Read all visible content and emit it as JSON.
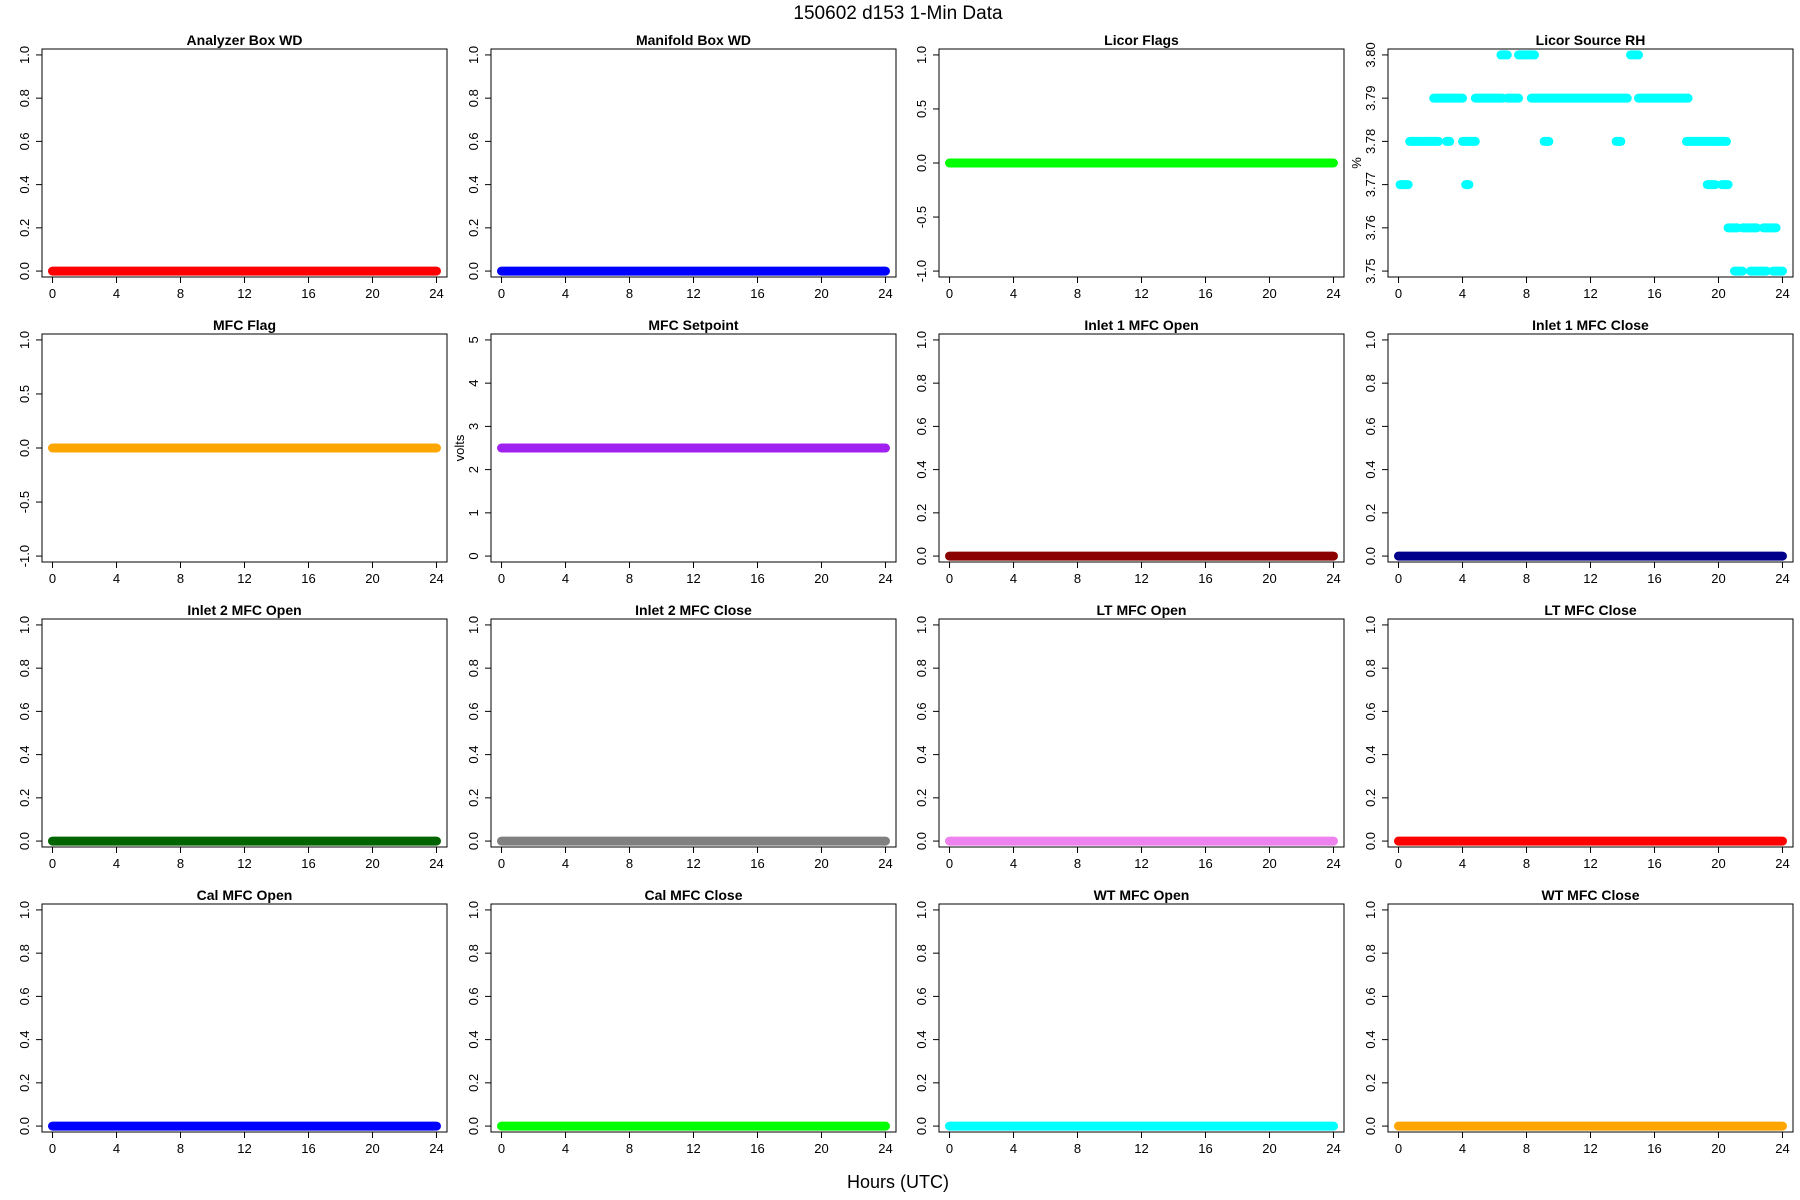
{
  "figure": {
    "title": "150602   d153   1-Min Data",
    "xlabel": "Hours (UTC)"
  },
  "chart_data": [
    {
      "type": "scatter",
      "title": "Analyzer Box WD",
      "ylabel": "",
      "color": "#ff0000",
      "xlim": [
        0,
        24
      ],
      "ylim": [
        0,
        1
      ],
      "x_ticks": [
        "0",
        "4",
        "8",
        "12",
        "16",
        "20",
        "24"
      ],
      "y_ticks": [
        "0.0",
        "0.2",
        "0.4",
        "0.6",
        "0.8",
        "1.0"
      ],
      "segments": [
        {
          "x": [
            0,
            24
          ],
          "y": 0
        }
      ]
    },
    {
      "type": "scatter",
      "title": "Manifold Box WD",
      "ylabel": "",
      "color": "#0000ff",
      "xlim": [
        0,
        24
      ],
      "ylim": [
        0,
        1
      ],
      "x_ticks": [
        "0",
        "4",
        "8",
        "12",
        "16",
        "20",
        "24"
      ],
      "y_ticks": [
        "0.0",
        "0.2",
        "0.4",
        "0.6",
        "0.8",
        "1.0"
      ],
      "segments": [
        {
          "x": [
            0,
            24
          ],
          "y": 0
        }
      ]
    },
    {
      "type": "scatter",
      "title": "Licor Flags",
      "ylabel": "",
      "color": "#00ff00",
      "xlim": [
        0,
        24
      ],
      "ylim": [
        -1,
        1
      ],
      "x_ticks": [
        "0",
        "4",
        "8",
        "12",
        "16",
        "20",
        "24"
      ],
      "y_ticks": [
        "-1.0",
        "-0.5",
        "0.0",
        "0.5",
        "1.0"
      ],
      "segments": [
        {
          "x": [
            0,
            24
          ],
          "y": 0
        }
      ]
    },
    {
      "type": "scatter",
      "title": "Licor Source RH",
      "ylabel": "%",
      "color": "#00ffff",
      "xlim": [
        0,
        24
      ],
      "ylim": [
        3.75,
        3.8
      ],
      "x_ticks": [
        "0",
        "4",
        "8",
        "12",
        "16",
        "20",
        "24"
      ],
      "y_ticks": [
        "3.75",
        "3.76",
        "3.77",
        "3.78",
        "3.79",
        "3.80"
      ],
      "segments": [
        {
          "x": [
            0.1,
            0.6
          ],
          "y": 3.77
        },
        {
          "x": [
            0.7,
            1.5
          ],
          "y": 3.78
        },
        {
          "x": [
            1.6,
            2.5
          ],
          "y": 3.78
        },
        {
          "x": [
            2.2,
            4.0
          ],
          "y": 3.79
        },
        {
          "x": [
            3.0,
            3.2
          ],
          "y": 3.78
        },
        {
          "x": [
            4.0,
            4.8
          ],
          "y": 3.78
        },
        {
          "x": [
            4.2,
            4.4
          ],
          "y": 3.77
        },
        {
          "x": [
            4.8,
            6.5
          ],
          "y": 3.79
        },
        {
          "x": [
            6.4,
            6.8
          ],
          "y": 3.8
        },
        {
          "x": [
            6.8,
            7.5
          ],
          "y": 3.79
        },
        {
          "x": [
            7.5,
            8.5
          ],
          "y": 3.8
        },
        {
          "x": [
            8.3,
            14.3
          ],
          "y": 3.79
        },
        {
          "x": [
            9.1,
            9.4
          ],
          "y": 3.78
        },
        {
          "x": [
            13.6,
            13.9
          ],
          "y": 3.78
        },
        {
          "x": [
            14.5,
            15.0
          ],
          "y": 3.8
        },
        {
          "x": [
            15.0,
            18.1
          ],
          "y": 3.79
        },
        {
          "x": [
            18.0,
            19.8
          ],
          "y": 3.78
        },
        {
          "x": [
            19.8,
            20.5
          ],
          "y": 3.78
        },
        {
          "x": [
            19.3,
            19.8
          ],
          "y": 3.77
        },
        {
          "x": [
            20.2,
            20.6
          ],
          "y": 3.77
        },
        {
          "x": [
            20.6,
            21.2
          ],
          "y": 3.76
        },
        {
          "x": [
            21.5,
            22.4
          ],
          "y": 3.76
        },
        {
          "x": [
            21.0,
            21.5
          ],
          "y": 3.75
        },
        {
          "x": [
            22.0,
            23.0
          ],
          "y": 3.75
        },
        {
          "x": [
            22.8,
            23.6
          ],
          "y": 3.76
        },
        {
          "x": [
            23.4,
            24.0
          ],
          "y": 3.75
        }
      ]
    },
    {
      "type": "scatter",
      "title": "MFC Flag",
      "ylabel": "",
      "color": "#ffa500",
      "xlim": [
        0,
        24
      ],
      "ylim": [
        -1,
        1
      ],
      "x_ticks": [
        "0",
        "4",
        "8",
        "12",
        "16",
        "20",
        "24"
      ],
      "y_ticks": [
        "-1.0",
        "-0.5",
        "0.0",
        "0.5",
        "1.0"
      ],
      "segments": [
        {
          "x": [
            0,
            24
          ],
          "y": 0
        }
      ]
    },
    {
      "type": "scatter",
      "title": "MFC Setpoint",
      "ylabel": "volts",
      "color": "#a020f0",
      "xlim": [
        0,
        24
      ],
      "ylim": [
        0,
        5
      ],
      "x_ticks": [
        "0",
        "4",
        "8",
        "12",
        "16",
        "20",
        "24"
      ],
      "y_ticks": [
        "0",
        "1",
        "2",
        "3",
        "4",
        "5"
      ],
      "segments": [
        {
          "x": [
            0,
            24
          ],
          "y": 2.5
        }
      ]
    },
    {
      "type": "scatter",
      "title": "Inlet 1 MFC Open",
      "ylabel": "",
      "color": "#8b0000",
      "xlim": [
        0,
        24
      ],
      "ylim": [
        0,
        1
      ],
      "x_ticks": [
        "0",
        "4",
        "8",
        "12",
        "16",
        "20",
        "24"
      ],
      "y_ticks": [
        "0.0",
        "0.2",
        "0.4",
        "0.6",
        "0.8",
        "1.0"
      ],
      "segments": [
        {
          "x": [
            0,
            24
          ],
          "y": 0
        }
      ]
    },
    {
      "type": "scatter",
      "title": "Inlet 1 MFC Close",
      "ylabel": "",
      "color": "#00008b",
      "xlim": [
        0,
        24
      ],
      "ylim": [
        0,
        1
      ],
      "x_ticks": [
        "0",
        "4",
        "8",
        "12",
        "16",
        "20",
        "24"
      ],
      "y_ticks": [
        "0.0",
        "0.2",
        "0.4",
        "0.6",
        "0.8",
        "1.0"
      ],
      "segments": [
        {
          "x": [
            0,
            24
          ],
          "y": 0
        }
      ]
    },
    {
      "type": "scatter",
      "title": "Inlet 2 MFC Open",
      "ylabel": "",
      "color": "#006400",
      "xlim": [
        0,
        24
      ],
      "ylim": [
        0,
        1
      ],
      "x_ticks": [
        "0",
        "4",
        "8",
        "12",
        "16",
        "20",
        "24"
      ],
      "y_ticks": [
        "0.0",
        "0.2",
        "0.4",
        "0.6",
        "0.8",
        "1.0"
      ],
      "segments": [
        {
          "x": [
            0,
            24
          ],
          "y": 0
        }
      ]
    },
    {
      "type": "scatter",
      "title": "Inlet 2 MFC Close",
      "ylabel": "",
      "color": "#808080",
      "xlim": [
        0,
        24
      ],
      "ylim": [
        0,
        1
      ],
      "x_ticks": [
        "0",
        "4",
        "8",
        "12",
        "16",
        "20",
        "24"
      ],
      "y_ticks": [
        "0.0",
        "0.2",
        "0.4",
        "0.6",
        "0.8",
        "1.0"
      ],
      "segments": [
        {
          "x": [
            0,
            24
          ],
          "y": 0
        }
      ]
    },
    {
      "type": "scatter",
      "title": "LT MFC Open",
      "ylabel": "",
      "color": "#ee82ee",
      "xlim": [
        0,
        24
      ],
      "ylim": [
        0,
        1
      ],
      "x_ticks": [
        "0",
        "4",
        "8",
        "12",
        "16",
        "20",
        "24"
      ],
      "y_ticks": [
        "0.0",
        "0.2",
        "0.4",
        "0.6",
        "0.8",
        "1.0"
      ],
      "segments": [
        {
          "x": [
            0,
            24
          ],
          "y": 0
        }
      ]
    },
    {
      "type": "scatter",
      "title": "LT MFC Close",
      "ylabel": "",
      "color": "#ff0000",
      "xlim": [
        0,
        24
      ],
      "ylim": [
        0,
        1
      ],
      "x_ticks": [
        "0",
        "4",
        "8",
        "12",
        "16",
        "20",
        "24"
      ],
      "y_ticks": [
        "0.0",
        "0.2",
        "0.4",
        "0.6",
        "0.8",
        "1.0"
      ],
      "segments": [
        {
          "x": [
            0,
            24
          ],
          "y": 0
        }
      ]
    },
    {
      "type": "scatter",
      "title": "Cal MFC Open",
      "ylabel": "",
      "color": "#0000ff",
      "xlim": [
        0,
        24
      ],
      "ylim": [
        0,
        1
      ],
      "x_ticks": [
        "0",
        "4",
        "8",
        "12",
        "16",
        "20",
        "24"
      ],
      "y_ticks": [
        "0.0",
        "0.2",
        "0.4",
        "0.6",
        "0.8",
        "1.0"
      ],
      "segments": [
        {
          "x": [
            0,
            24
          ],
          "y": 0
        }
      ]
    },
    {
      "type": "scatter",
      "title": "Cal MFC Close",
      "ylabel": "",
      "color": "#00ff00",
      "xlim": [
        0,
        24
      ],
      "ylim": [
        0,
        1
      ],
      "x_ticks": [
        "0",
        "4",
        "8",
        "12",
        "16",
        "20",
        "24"
      ],
      "y_ticks": [
        "0.0",
        "0.2",
        "0.4",
        "0.6",
        "0.8",
        "1.0"
      ],
      "segments": [
        {
          "x": [
            0,
            24
          ],
          "y": 0
        }
      ]
    },
    {
      "type": "scatter",
      "title": "WT MFC Open",
      "ylabel": "",
      "color": "#00ffff",
      "xlim": [
        0,
        24
      ],
      "ylim": [
        0,
        1
      ],
      "x_ticks": [
        "0",
        "4",
        "8",
        "12",
        "16",
        "20",
        "24"
      ],
      "y_ticks": [
        "0.0",
        "0.2",
        "0.4",
        "0.6",
        "0.8",
        "1.0"
      ],
      "segments": [
        {
          "x": [
            0,
            24
          ],
          "y": 0
        }
      ]
    },
    {
      "type": "scatter",
      "title": "WT MFC Close",
      "ylabel": "",
      "color": "#ffa500",
      "xlim": [
        0,
        24
      ],
      "ylim": [
        0,
        1
      ],
      "x_ticks": [
        "0",
        "4",
        "8",
        "12",
        "16",
        "20",
        "24"
      ],
      "y_ticks": [
        "0.0",
        "0.2",
        "0.4",
        "0.6",
        "0.8",
        "1.0"
      ],
      "segments": [
        {
          "x": [
            0,
            24
          ],
          "y": 0
        }
      ]
    }
  ]
}
